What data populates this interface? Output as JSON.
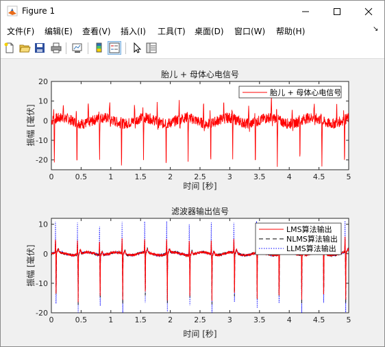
{
  "window": {
    "title": "Figure 1",
    "controls": [
      "minimize",
      "maximize",
      "close"
    ]
  },
  "menu": {
    "items": [
      "文件(F)",
      "编辑(E)",
      "查看(V)",
      "插入(I)",
      "工具(T)",
      "桌面(D)",
      "窗口(W)",
      "帮助(H)"
    ]
  },
  "toolbar": {
    "icons": [
      "new-figure-icon",
      "open-file-icon",
      "save-icon",
      "print-icon",
      "link-plot-icon",
      "insert-colorbar-icon",
      "insert-legend-icon",
      "edit-plot-arrow-icon",
      "property-inspector-icon"
    ]
  },
  "colors": {
    "red": "#ff0000",
    "black": "#000000",
    "blue": "#0000ff"
  },
  "chart_data": [
    {
      "type": "line",
      "title": "胎儿 + 母体心电信号",
      "xlabel": "时间 [秒]",
      "ylabel": "振幅 [毫伏]",
      "xlim": [
        0,
        5
      ],
      "ylim": [
        -25,
        20
      ],
      "xticks": [
        "0",
        "0.5",
        "1",
        "1.5",
        "2",
        "2.5",
        "3",
        "3.5",
        "4",
        "4.5",
        "5"
      ],
      "yticks": [
        "20",
        "10",
        "0",
        "-10",
        "-20"
      ],
      "legend_position": "top-right",
      "grid": false,
      "series": [
        {
          "name": "胎儿 + 母体心电信号",
          "color": "#ff0000",
          "style": "solid",
          "maternal_peaks_t": [
            0.05,
            0.43,
            0.81,
            1.18,
            1.55,
            1.93,
            2.3,
            2.68,
            3.05,
            3.43,
            3.8,
            4.18,
            4.55,
            4.93
          ],
          "maternal_peak_mV": -22,
          "fetal_peaks_t": [
            0.2,
            0.62,
            0.98,
            1.4,
            1.78,
            2.15,
            2.56,
            2.9,
            3.32,
            3.7,
            4.05,
            4.42,
            4.8
          ],
          "fetal_peak_mV": 9,
          "noise_range_mV": [
            -3,
            3
          ]
        }
      ]
    },
    {
      "type": "line",
      "title": "滤波器输出信号",
      "xlabel": "时间 [秒]",
      "ylabel": "振幅 [毫伏]",
      "xlim": [
        0,
        5
      ],
      "ylim": [
        -20,
        12
      ],
      "xticks": [
        "0",
        "0.5",
        "1",
        "1.5",
        "2",
        "2.5",
        "3",
        "3.5",
        "4",
        "4.5",
        "5"
      ],
      "yticks": [
        "10",
        "0",
        "-10",
        "-20"
      ],
      "legend_position": "top-right",
      "grid": false,
      "series": [
        {
          "name": "LMS算法输出",
          "color": "#ff0000",
          "style": "solid",
          "peaks_t": [
            0.08,
            0.45,
            0.82,
            1.2,
            1.58,
            1.95,
            2.33,
            2.7,
            3.08,
            3.46,
            3.83,
            4.21,
            4.58,
            4.95
          ],
          "peak_mV": -16,
          "pos_peak_mV": 5
        },
        {
          "name": "NLMS算法输出",
          "color": "#000000",
          "style": "dashed",
          "peaks_t": [
            0.08,
            0.45,
            0.82,
            1.2,
            1.58,
            1.95,
            2.33,
            2.7,
            3.08,
            3.46,
            3.83,
            4.21,
            4.58,
            4.95
          ],
          "peak_mV": -17,
          "pos_peak_mV": 4
        },
        {
          "name": "LLMS算法输出",
          "color": "#0000ff",
          "style": "dotted",
          "peaks_t": [
            0.08,
            0.45,
            0.82,
            1.2,
            1.58,
            1.95,
            2.33,
            2.7,
            3.08,
            3.46,
            3.83,
            4.21,
            4.58,
            4.95
          ],
          "peak_mV": -20,
          "pos_peak_mV": 11
        }
      ]
    }
  ]
}
